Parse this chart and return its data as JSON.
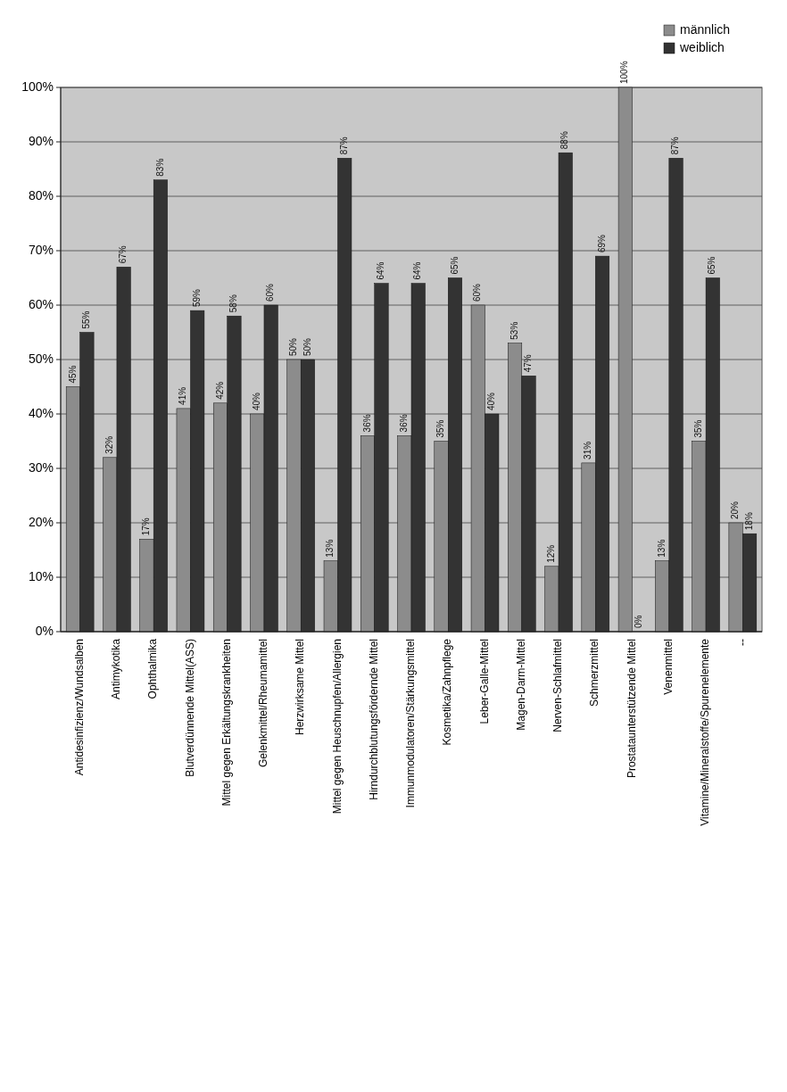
{
  "chart_data": {
    "type": "bar",
    "categories": [
      "Antidesinfizienz/Wundsalben",
      "Antimykotika",
      "Ophthalmika",
      "Blutverdünnende Mittel(ASS)",
      "Mittel gegen Erkältungskrankheiten",
      "Gelenkmittel/Rheumamittel",
      "Herzwirksame Mittel",
      "Mittel gegen Heuschnupfen/Allergien",
      "Hirndurchblutungsfördernde Mittel",
      "Immunmodulatoren/Stärkungsmittel",
      "Kosmetika/Zahnpflege",
      "Leber-Galle-Mittel",
      "Magen-Darm-Mittel",
      "Nerven-Schlafmittel",
      "Schmerzmittel",
      "Prostataunterstützende Mittel",
      "Venenmittel",
      "Vitamine/Mineralstoffe/Spurenelemente",
      "--"
    ],
    "series": [
      {
        "name": "männlich",
        "color": "#8c8c8c",
        "values": [
          45,
          32,
          17,
          41,
          42,
          40,
          50,
          13,
          36,
          36,
          35,
          60,
          53,
          12,
          31,
          100,
          13,
          35,
          20
        ],
        "value_labels": [
          "45%",
          "32%",
          "17%",
          "41%",
          "42%",
          "40%",
          "50%",
          "13%",
          "36%",
          "36%",
          "35%",
          "60%",
          "53%",
          "12%",
          "31%",
          "100%",
          "13%",
          "35%",
          "20%"
        ]
      },
      {
        "name": "weiblich",
        "color": "#333333",
        "values": [
          55,
          67,
          83,
          59,
          58,
          60,
          50,
          87,
          64,
          64,
          65,
          40,
          47,
          88,
          69,
          0,
          87,
          65,
          18
        ],
        "value_labels": [
          "55%",
          "67%",
          "83%",
          "59%",
          "58%",
          "60%",
          "50%",
          "87%",
          "64%",
          "64%",
          "65%",
          "40%",
          "47%",
          "88%",
          "69%",
          "0%",
          "87%",
          "65%",
          "18%"
        ]
      }
    ],
    "ylim": [
      0,
      100
    ],
    "yticks": [
      {
        "value": 0,
        "label": "0%"
      },
      {
        "value": 10,
        "label": "10%"
      },
      {
        "value": 20,
        "label": "20%"
      },
      {
        "value": 30,
        "label": "30%"
      },
      {
        "value": 40,
        "label": "40%"
      },
      {
        "value": 50,
        "label": "50%"
      },
      {
        "value": 60,
        "label": "60%"
      },
      {
        "value": 70,
        "label": "70%"
      },
      {
        "value": 80,
        "label": "80%"
      },
      {
        "value": 90,
        "label": "90%"
      },
      {
        "value": 100,
        "label": "100%"
      }
    ],
    "grid": "y",
    "legend": "top right"
  }
}
